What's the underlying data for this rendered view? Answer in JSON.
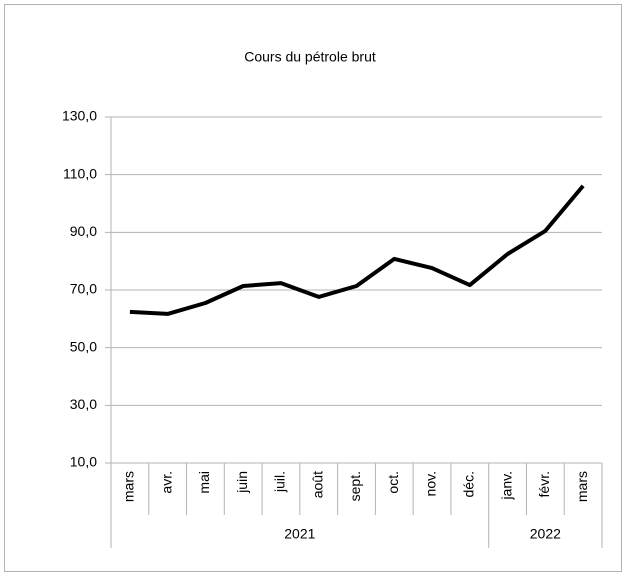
{
  "chart_data": {
    "type": "line",
    "title": "Cours du pétrole brut",
    "categories": [
      "mars",
      "avr.",
      "mai",
      "juin",
      "juil.",
      "août",
      "sept.",
      "oct.",
      "nov.",
      "déc.",
      "janv.",
      "févr.",
      "mars"
    ],
    "category_groups": [
      {
        "label": "2021",
        "span": 10
      },
      {
        "label": "2022",
        "span": 3
      }
    ],
    "series": [
      {
        "name": "Cours du pétrole brut",
        "color": "#000000",
        "values": [
          62.4,
          61.7,
          65.5,
          71.4,
          72.4,
          67.6,
          71.4,
          80.8,
          77.6,
          71.7,
          82.5,
          90.5,
          106.1
        ]
      }
    ],
    "ylim": [
      10,
      130
    ],
    "yticks": [
      {
        "value": 10,
        "label": "10,0"
      },
      {
        "value": 30,
        "label": "30,0"
      },
      {
        "value": 50,
        "label": "50,0"
      },
      {
        "value": 70,
        "label": "70,0"
      },
      {
        "value": 90,
        "label": "90,0"
      },
      {
        "value": 110,
        "label": "110,0"
      },
      {
        "value": 130,
        "label": "130,0"
      }
    ],
    "grid": true
  }
}
